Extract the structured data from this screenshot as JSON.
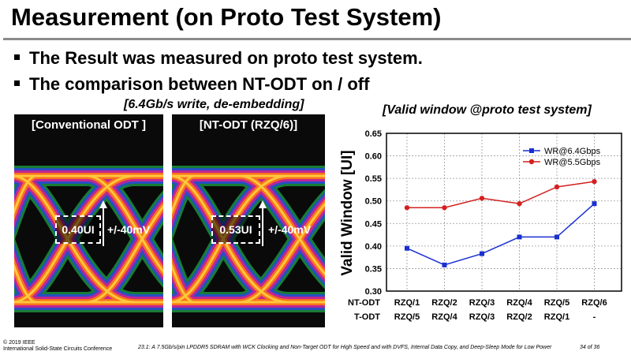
{
  "title": "Measurement (on Proto Test System)",
  "bullets": [
    "The Result was measured on proto test system.",
    "The comparison between NT-ODT on / off"
  ],
  "eye_caption": "[6.4Gb/s write, de-embedding]",
  "eyes": [
    {
      "label": "[Conventional ODT ]",
      "window": "0.40UI",
      "voltage": "+/-40mV"
    },
    {
      "label": "[NT-ODT  (RZQ/6)]",
      "window": "0.53UI",
      "voltage": "+/-40mV"
    }
  ],
  "chart_caption": "[Valid window @proto test system]",
  "chart_data": {
    "type": "line",
    "ylabel": "Valid Window [UI]",
    "ylim": [
      0.3,
      0.65
    ],
    "yticks": [
      "0.30",
      "0.35",
      "0.40",
      "0.45",
      "0.50",
      "0.55",
      "0.60",
      "0.65"
    ],
    "grid": true,
    "legend": "top-right",
    "row_labels": [
      "NT-ODT",
      "T-ODT"
    ],
    "categories_nt": [
      "RZQ/1",
      "RZQ/2",
      "RZQ/3",
      "RZQ/4",
      "RZQ/5",
      "RZQ/6"
    ],
    "categories_t": [
      "RZQ/5",
      "RZQ/4",
      "RZQ/3",
      "RZQ/2",
      "RZQ/1",
      "-"
    ],
    "series": [
      {
        "name": "WR@6.4Gbps",
        "color": "#1a2fd0",
        "marker": "square",
        "values": [
          0.395,
          0.358,
          0.383,
          0.42,
          0.42,
          0.494
        ]
      },
      {
        "name": "WR@5.5Gbps",
        "color": "#d42020",
        "marker": "circle",
        "values": [
          0.485,
          0.485,
          0.506,
          0.494,
          0.531,
          0.543
        ]
      }
    ]
  },
  "footer": {
    "copyright": "© 2019 IEEE",
    "conference": "International Solid-State Circuits Conference",
    "paper": "23.1: A 7.5Gb/s/pin LPDDR5 SDRAM with WCK Clocking and Non-Target ODT for High Speed and with DVFS, Internal Data Copy, and Deep-Sleep Mode for Low Power",
    "page": "34 of 36"
  }
}
